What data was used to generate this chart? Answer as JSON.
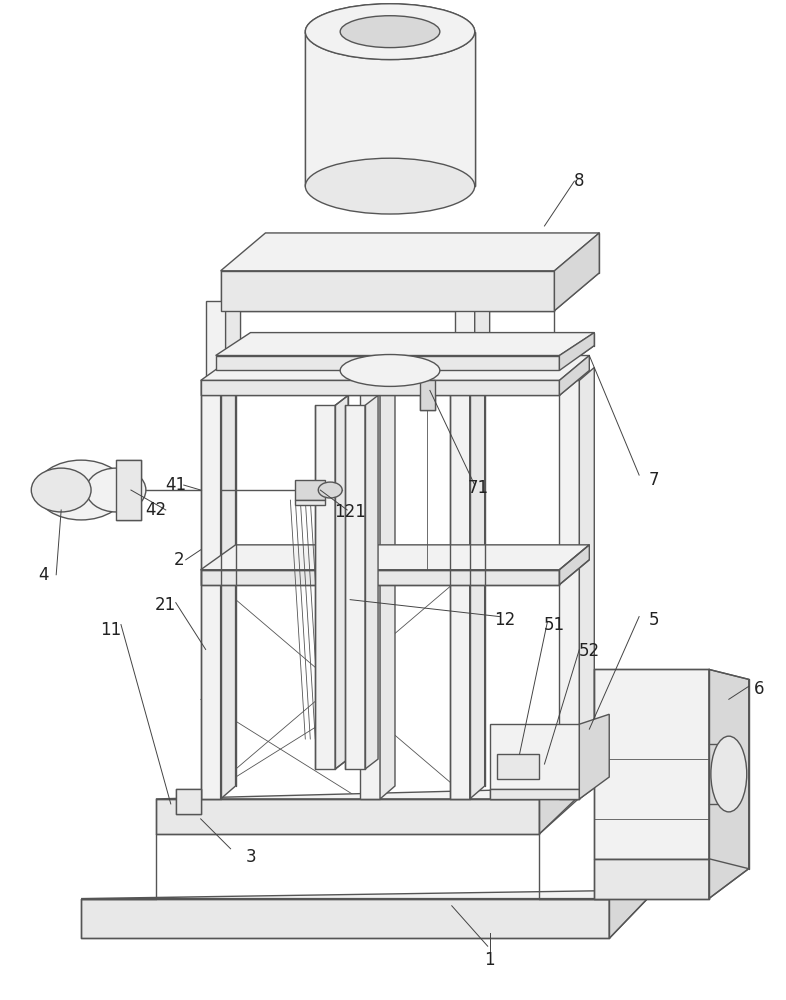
{
  "fig_width": 7.86,
  "fig_height": 10.0,
  "dpi": 100,
  "bg": "#ffffff",
  "lc": "#555555",
  "lc_dark": "#333333",
  "lw": 1.0,
  "lw_thin": 0.6,
  "fill_light": "#f2f2f2",
  "fill_mid": "#e8e8e8",
  "fill_dark": "#d8d8d8",
  "fill_white": "#ffffff"
}
